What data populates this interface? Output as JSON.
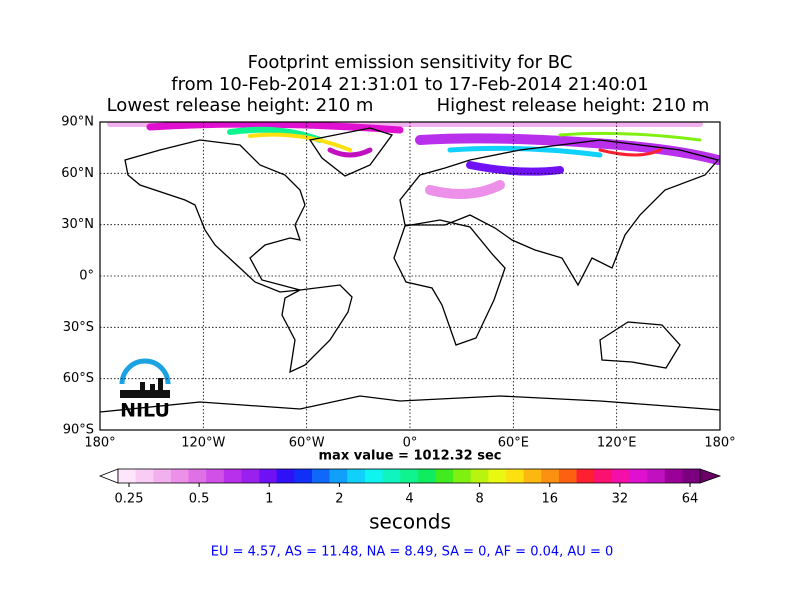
{
  "title": [
    "Footprint emission sensitivity for BC",
    "from 10-Feb-2014 21:31:01 to 17-Feb-2014 21:40:01"
  ],
  "release_heights": [
    "Lowest release height: 210 m",
    "Highest release height: 210 m"
  ],
  "map": {
    "lat_ticks": [
      {
        "value": 90,
        "label": "90°N"
      },
      {
        "value": 60,
        "label": "60°N"
      },
      {
        "value": 30,
        "label": "30°N"
      },
      {
        "value": 0,
        "label": "0°"
      },
      {
        "value": -30,
        "label": "30°S"
      },
      {
        "value": -60,
        "label": "60°S"
      },
      {
        "value": -90,
        "label": "90°S"
      }
    ],
    "lon_ticks": [
      {
        "value": -180,
        "label": "180°"
      },
      {
        "value": -120,
        "label": "120°W"
      },
      {
        "value": -60,
        "label": "60°W"
      },
      {
        "value": 0,
        "label": "0°"
      },
      {
        "value": 60,
        "label": "60°E"
      },
      {
        "value": 120,
        "label": "120°E"
      },
      {
        "value": 180,
        "label": "180°"
      }
    ],
    "max_value": "max value = 1012.32 sec",
    "logo": "NILU"
  },
  "colorbar": {
    "clim": [
      0.25,
      64
    ],
    "ticks": [
      0.25,
      0.5,
      1,
      2,
      4,
      8,
      16,
      32,
      64
    ],
    "label": "seconds",
    "under_color": "#ffffff",
    "over_color": "#6a0066",
    "colors": [
      "#fde6fb",
      "#f9ccf5",
      "#f3b0ef",
      "#ec90ea",
      "#e070e6",
      "#d050e8",
      "#b830ec",
      "#9a20f0",
      "#7010f4",
      "#3010f6",
      "#1030f8",
      "#1068fa",
      "#10a0fc",
      "#10d0fc",
      "#10f4f0",
      "#10f4c0",
      "#10f490",
      "#10ec60",
      "#40ec20",
      "#80f010",
      "#b8f410",
      "#e8f810",
      "#fce010",
      "#fcb810",
      "#fc9010",
      "#fc6010",
      "#fc2030",
      "#fc1070",
      "#f410a8",
      "#e010d0",
      "#c010c0",
      "#9a0098",
      "#7a0080"
    ]
  },
  "stats": "EU = 4.57,  AS = 11.48,  NA = 8.49,  SA = 0,  AF = 0.04,  AU = 0"
}
